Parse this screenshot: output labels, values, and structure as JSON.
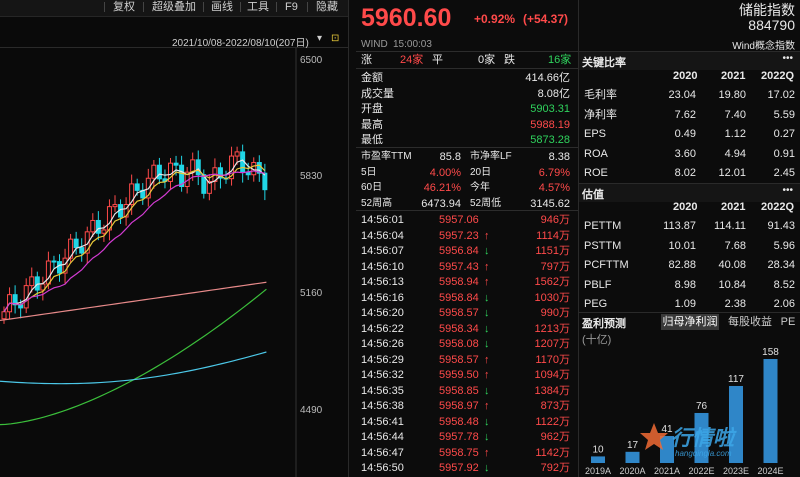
{
  "toolbar": {
    "items": [
      "复权",
      "超级叠加",
      "画线",
      "工具",
      "F9",
      "隐藏"
    ]
  },
  "chart": {
    "date_range": "2021/10/08-2022/08/10(207日)",
    "y_ticks": [
      "6500",
      "5830",
      "5160",
      "4490"
    ]
  },
  "quote": {
    "price": "5960.60",
    "change_pct": "+0.92%",
    "change_abs": "(+54.37)",
    "source": "WIND",
    "time": "15:00:03",
    "breadth": {
      "up_label": "涨",
      "up_count": "24家",
      "flat_label": "平",
      "flat_count": "0家",
      "down_label": "跌",
      "down_count": "16家"
    },
    "stats": [
      {
        "label": "金额",
        "value": "414.66亿",
        "tone": "white"
      },
      {
        "label": "成交量",
        "value": "8.08亿",
        "tone": "white"
      },
      {
        "label": "开盘",
        "value": "5903.31",
        "tone": "green"
      },
      {
        "label": "最高",
        "value": "5988.19",
        "tone": "red"
      },
      {
        "label": "最低",
        "value": "5873.28",
        "tone": "green"
      }
    ],
    "valuation": [
      {
        "l1": "市盈率TTM",
        "v1": "85.8",
        "t1": "white",
        "l2": "市净率LF",
        "v2": "8.38",
        "t2": "white"
      },
      {
        "l1": "5日",
        "v1": "4.00%",
        "t1": "red",
        "l2": "20日",
        "v2": "6.79%",
        "t2": "red"
      },
      {
        "l1": "60日",
        "v1": "46.21%",
        "t1": "red",
        "l2": "今年",
        "v2": "4.57%",
        "t2": "red"
      },
      {
        "l1": "52周高",
        "v1": "6473.94",
        "t1": "white",
        "l2": "52周低",
        "v2": "3145.62",
        "t2": "white"
      }
    ],
    "ticks": [
      {
        "time": "14:56:01",
        "price": "5957.06",
        "arrow": "",
        "vol": "946万"
      },
      {
        "time": "14:56:04",
        "price": "5957.23",
        "arrow": "↑",
        "vol": "1114万"
      },
      {
        "time": "14:56:07",
        "price": "5956.84",
        "arrow": "↓",
        "vol": "1151万"
      },
      {
        "time": "14:56:10",
        "price": "5957.43",
        "arrow": "↑",
        "vol": "797万"
      },
      {
        "time": "14:56:13",
        "price": "5958.94",
        "arrow": "↑",
        "vol": "1562万"
      },
      {
        "time": "14:56:16",
        "price": "5958.84",
        "arrow": "↓",
        "vol": "1030万"
      },
      {
        "time": "14:56:20",
        "price": "5958.57",
        "arrow": "↓",
        "vol": "990万"
      },
      {
        "time": "14:56:22",
        "price": "5958.34",
        "arrow": "↓",
        "vol": "1213万"
      },
      {
        "time": "14:56:26",
        "price": "5958.08",
        "arrow": "↓",
        "vol": "1207万"
      },
      {
        "time": "14:56:29",
        "price": "5958.57",
        "arrow": "↑",
        "vol": "1170万"
      },
      {
        "time": "14:56:32",
        "price": "5959.50",
        "arrow": "↑",
        "vol": "1094万"
      },
      {
        "time": "14:56:35",
        "price": "5958.85",
        "arrow": "↓",
        "vol": "1384万"
      },
      {
        "time": "14:56:38",
        "price": "5958.97",
        "arrow": "↑",
        "vol": "873万"
      },
      {
        "time": "14:56:41",
        "price": "5958.48",
        "arrow": "↓",
        "vol": "1122万"
      },
      {
        "time": "14:56:44",
        "price": "5957.78",
        "arrow": "↓",
        "vol": "962万"
      },
      {
        "time": "14:56:47",
        "price": "5958.75",
        "arrow": "↑",
        "vol": "1142万"
      },
      {
        "time": "14:56:50",
        "price": "5957.92",
        "arrow": "↓",
        "vol": "792万"
      }
    ]
  },
  "right": {
    "index_name": "储能指数",
    "index_code": "884790",
    "concept": "Wind概念指数",
    "key_ratio_title": "关键比率",
    "years": [
      "2020",
      "2021",
      "2022Q"
    ],
    "ratios": [
      {
        "label": "毛利率",
        "v": [
          "23.04",
          "19.80",
          "17.02"
        ]
      },
      {
        "label": "净利率",
        "v": [
          "7.62",
          "7.40",
          "5.59"
        ]
      },
      {
        "label": "EPS",
        "v": [
          "0.49",
          "1.12",
          "0.27"
        ]
      },
      {
        "label": "ROA",
        "v": [
          "3.60",
          "4.94",
          "0.91"
        ]
      },
      {
        "label": "ROE",
        "v": [
          "8.02",
          "12.01",
          "2.45"
        ]
      }
    ],
    "valuation_title": "估值",
    "valuation": [
      {
        "label": "PETTM",
        "v": [
          "113.87",
          "114.11",
          "91.43"
        ]
      },
      {
        "label": "PSTTM",
        "v": [
          "10.01",
          "7.68",
          "5.96"
        ]
      },
      {
        "label": "PCFTTM",
        "v": [
          "82.88",
          "40.08",
          "28.34"
        ]
      },
      {
        "label": "PBLF",
        "v": [
          "8.98",
          "10.84",
          "8.52"
        ]
      },
      {
        "label": "PEG",
        "v": [
          "1.09",
          "2.38",
          "2.06"
        ]
      }
    ],
    "forecast_title": "盈利预测",
    "tabs": [
      "归母净利润",
      "每股收益",
      "PE"
    ],
    "unit": "(十亿)",
    "more_icon": "•••",
    "watermark": "行情啦",
    "watermark_url": "hangqingla.com"
  },
  "chart_data": {
    "type": "bar",
    "categories": [
      "2019A",
      "2020A",
      "2021A",
      "2022E",
      "2023E",
      "2024E"
    ],
    "values": [
      10,
      17,
      41,
      76,
      117,
      158
    ],
    "title": "盈利预测",
    "ylabel": "(十亿)"
  }
}
